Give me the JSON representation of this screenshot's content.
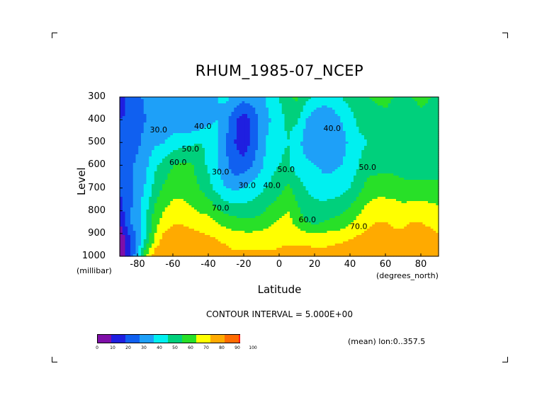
{
  "chart_data": {
    "type": "heatmap",
    "title": "RHUM_1985-07_NCEP",
    "xlabel": "Latitude",
    "x_units": "(degrees_north)",
    "ylabel": "Level",
    "y_units": "(millibar)",
    "xlim": [
      -90,
      90
    ],
    "ylim": [
      1000,
      300
    ],
    "x_ticks": [
      "-80",
      "-60",
      "-40",
      "-20",
      "0",
      "20",
      "40",
      "60",
      "80"
    ],
    "x_tick_values": [
      -80,
      -60,
      -40,
      -20,
      0,
      20,
      40,
      60,
      80
    ],
    "y_ticks": [
      "300",
      "400",
      "500",
      "600",
      "700",
      "800",
      "900",
      "1000"
    ],
    "y_tick_values": [
      300,
      400,
      500,
      600,
      700,
      800,
      900,
      1000
    ],
    "contour_interval_text": "CONTOUR INTERVAL = 5.000E+00",
    "annotation": "(mean) lon:0..357.5",
    "colorbar": {
      "levels": [
        0,
        10,
        20,
        30,
        40,
        50,
        60,
        70,
        80,
        90,
        100
      ],
      "labels": [
        "0",
        "10",
        "20",
        "30",
        "40",
        "50",
        "60",
        "70",
        "80",
        "90",
        "100"
      ],
      "colors": [
        "#7f0fa8",
        "#1f1fe0",
        "#1060f0",
        "#1ea0f8",
        "#00f0f0",
        "#00d07c",
        "#28e028",
        "#ffff00",
        "#ffaa00",
        "#ff6c00",
        "#ff1a1a"
      ]
    },
    "contour_labels": [
      "30.0",
      "30.0",
      "40.0",
      "50.0",
      "60.0",
      "70.0",
      "30.0",
      "40.0",
      "50.0",
      "40.0",
      "50.0",
      "60.0",
      "70.0"
    ],
    "latitudes": [
      -90,
      -85,
      -80,
      -75,
      -70,
      -65,
      -60,
      -55,
      -50,
      -45,
      -40,
      -35,
      -30,
      -25,
      -20,
      -15,
      -10,
      -5,
      0,
      5,
      10,
      15,
      20,
      25,
      30,
      35,
      40,
      45,
      50,
      55,
      60,
      65,
      70,
      75,
      80,
      85,
      90
    ],
    "levels_mb": [
      300,
      400,
      500,
      600,
      700,
      850,
      925,
      1000
    ],
    "rhum": [
      [
        8,
        25,
        28,
        32,
        34,
        36,
        38,
        38,
        36,
        36,
        38,
        40,
        42,
        38,
        34,
        36,
        38,
        44,
        50,
        58,
        62,
        54,
        48,
        44,
        46,
        50,
        54,
        58,
        60,
        62,
        62,
        60,
        58,
        60,
        62,
        60,
        56
      ],
      [
        20,
        22,
        26,
        30,
        32,
        34,
        34,
        32,
        30,
        32,
        38,
        40,
        34,
        22,
        14,
        22,
        34,
        40,
        46,
        52,
        52,
        40,
        34,
        32,
        34,
        40,
        46,
        52,
        54,
        56,
        58,
        56,
        56,
        56,
        58,
        58,
        56
      ],
      [
        24,
        24,
        28,
        34,
        38,
        40,
        44,
        46,
        48,
        50,
        48,
        42,
        30,
        20,
        14,
        22,
        36,
        44,
        48,
        50,
        44,
        36,
        34,
        32,
        32,
        36,
        42,
        48,
        50,
        52,
        54,
        54,
        52,
        50,
        50,
        50,
        50
      ],
      [
        22,
        28,
        32,
        38,
        48,
        54,
        60,
        62,
        62,
        56,
        48,
        40,
        32,
        24,
        24,
        30,
        38,
        46,
        50,
        52,
        44,
        42,
        40,
        38,
        38,
        40,
        44,
        50,
        55,
        56,
        56,
        56,
        54,
        54,
        54,
        54,
        54
      ],
      [
        22,
        26,
        34,
        42,
        54,
        62,
        66,
        66,
        64,
        60,
        54,
        46,
        40,
        38,
        40,
        44,
        48,
        52,
        56,
        62,
        56,
        50,
        46,
        44,
        44,
        46,
        50,
        56,
        64,
        66,
        66,
        66,
        64,
        64,
        64,
        64,
        64
      ],
      [
        10,
        28,
        36,
        52,
        66,
        74,
        78,
        78,
        76,
        74,
        74,
        70,
        66,
        64,
        62,
        62,
        64,
        68,
        72,
        74,
        66,
        60,
        58,
        60,
        62,
        64,
        68,
        74,
        78,
        80,
        80,
        78,
        78,
        80,
        80,
        78,
        76
      ],
      [
        0,
        16,
        32,
        52,
        72,
        84,
        88,
        90,
        88,
        84,
        82,
        80,
        78,
        76,
        76,
        76,
        76,
        76,
        78,
        78,
        78,
        78,
        76,
        76,
        78,
        78,
        80,
        82,
        84,
        84,
        84,
        84,
        84,
        86,
        86,
        84,
        82
      ],
      [
        0,
        16,
        38,
        70,
        86,
        88,
        88,
        86,
        84,
        84,
        84,
        84,
        84,
        82,
        82,
        82,
        82,
        82,
        82,
        84,
        84,
        84,
        84,
        84,
        84,
        86,
        86,
        88,
        88,
        88,
        88,
        86,
        88,
        88,
        88,
        88,
        86
      ]
    ]
  }
}
